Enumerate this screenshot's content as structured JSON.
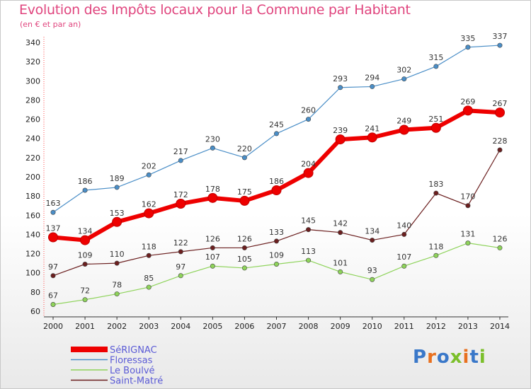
{
  "header": {
    "title": "Evolution des Impôts locaux pour la Commune par Habitant",
    "subtitle": "(en € et par an)"
  },
  "logo": {
    "text": "Proxiti",
    "colors": [
      "#3a78c9",
      "#e8701f",
      "#3a78c9",
      "#7bbf2a",
      "#e8701f",
      "#3a78c9",
      "#7bbf2a"
    ]
  },
  "chart_data": {
    "type": "line",
    "title": "Evolution des Impôts locaux pour la Commune par Habitant",
    "subtitle": "(en € et par an)",
    "x": [
      "2000",
      "2001",
      "2002",
      "2003",
      "2004",
      "2005",
      "2006",
      "2007",
      "2008",
      "2009",
      "2010",
      "2011",
      "2012",
      "2013",
      "2014"
    ],
    "ylim": [
      60,
      340
    ],
    "yticks": [
      60,
      80,
      100,
      120,
      140,
      160,
      180,
      200,
      220,
      240,
      260,
      280,
      300,
      320,
      340
    ],
    "grid": false,
    "legend_position": "bottom-left",
    "series": [
      {
        "name": "SéRIGNAC",
        "color": "#ee0000",
        "values": [
          137,
          134,
          153,
          162,
          172,
          178,
          175,
          186,
          204,
          239,
          241,
          249,
          251,
          269,
          267
        ]
      },
      {
        "name": "Floressas",
        "color": "#4a8ec7",
        "values": [
          163,
          186,
          189,
          202,
          217,
          230,
          220,
          245,
          260,
          293,
          294,
          302,
          315,
          335,
          337
        ]
      },
      {
        "name": "Le Boulvé",
        "color": "#8ed35a",
        "values": [
          67,
          72,
          78,
          85,
          97,
          107,
          105,
          109,
          113,
          101,
          93,
          107,
          118,
          131,
          126
        ]
      },
      {
        "name": "Saint-Matré",
        "color": "#6b1f1f",
        "values": [
          97,
          109,
          110,
          118,
          122,
          126,
          126,
          133,
          145,
          142,
          134,
          140,
          183,
          170,
          228
        ]
      }
    ]
  }
}
